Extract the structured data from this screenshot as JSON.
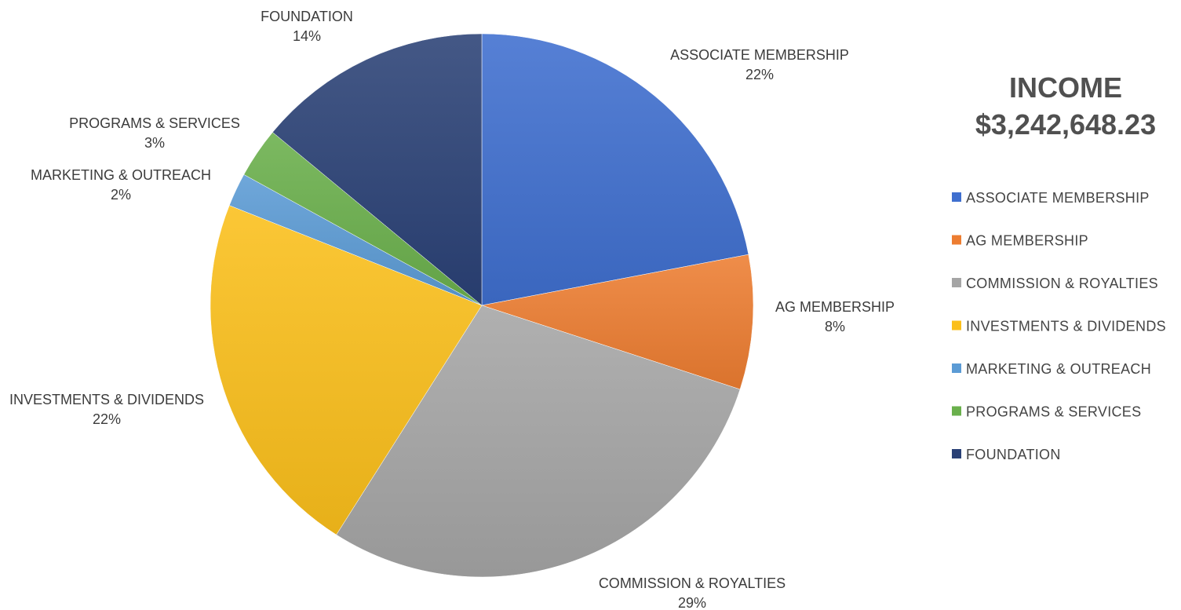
{
  "chart_data": {
    "type": "pie",
    "title": "INCOME",
    "subtitle": "$3,242,648.23",
    "legend_position": "right",
    "slices": [
      {
        "label": "ASSOCIATE MEMBERSHIP",
        "value": 22,
        "display": "22%",
        "color": "#3f6fcf"
      },
      {
        "label": "AG MEMBERSHIP",
        "value": 8,
        "display": "8%",
        "color": "#ed7d31"
      },
      {
        "label": "COMMISSION & ROYALTIES",
        "value": 29,
        "display": "29%",
        "color": "#a5a5a5"
      },
      {
        "label": "INVESTMENTS & DIVIDENDS",
        "value": 22,
        "display": "22%",
        "color": "#fbbf1b"
      },
      {
        "label": "MARKETING & OUTREACH",
        "value": 2,
        "display": "2%",
        "color": "#5b9bd5"
      },
      {
        "label": "PROGRAMS & SERVICES",
        "value": 3,
        "display": "3%",
        "color": "#6ab04c"
      },
      {
        "label": "FOUNDATION",
        "value": 14,
        "display": "14%",
        "color": "#2a4176"
      }
    ]
  }
}
